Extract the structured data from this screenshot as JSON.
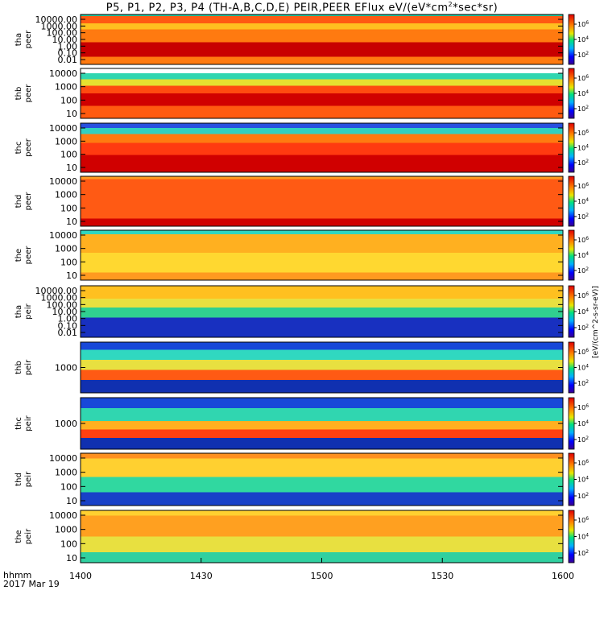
{
  "title_parts": [
    "P5, P1, P2, P3, P4 (TH-A,B,C,D,E) PEIR,PEER EFlux eV/(eV*cm",
    "2",
    "*sec*sr)"
  ],
  "chart_data": {
    "type": "heatmap",
    "x_ticks": [
      "1400",
      "1430",
      "1500",
      "1530",
      "1600"
    ],
    "x_label_lines": [
      "hhmm",
      "2017 Mar 19"
    ],
    "colorbar_label": "[eV/(cm^2-s-sr-eV)]",
    "colorbar_ticks": [
      "10^2",
      "10^4",
      "10^6"
    ],
    "panels": [
      {
        "probe": "tha",
        "type": "peer",
        "yticks": [
          "10000.00",
          "1000.00",
          "100.00",
          "10.00",
          "1.00",
          "0.10",
          "0.01"
        ]
      },
      {
        "probe": "thb",
        "type": "peer",
        "yticks": [
          "10000",
          "1000",
          "100",
          "10"
        ]
      },
      {
        "probe": "thc",
        "type": "peer",
        "yticks": [
          "10000",
          "1000",
          "100",
          "10"
        ]
      },
      {
        "probe": "thd",
        "type": "peer",
        "yticks": [
          "10000",
          "1000",
          "100",
          "10"
        ]
      },
      {
        "probe": "the",
        "type": "peer",
        "yticks": [
          "10000",
          "1000",
          "100",
          "10"
        ]
      },
      {
        "probe": "tha",
        "type": "peir",
        "yticks": [
          "10000.00",
          "1000.00",
          "100.00",
          "10.00",
          "1.00",
          "0.10",
          "0.01"
        ]
      },
      {
        "probe": "thb",
        "type": "peir",
        "yticks": [
          "1000"
        ]
      },
      {
        "probe": "thc",
        "type": "peir",
        "yticks": [
          "1000"
        ]
      },
      {
        "probe": "thd",
        "type": "peir",
        "yticks": [
          "10000",
          "1000",
          "100",
          "10"
        ]
      },
      {
        "probe": "the",
        "type": "peir",
        "yticks": [
          "10000",
          "1000",
          "100",
          "10"
        ]
      }
    ]
  }
}
